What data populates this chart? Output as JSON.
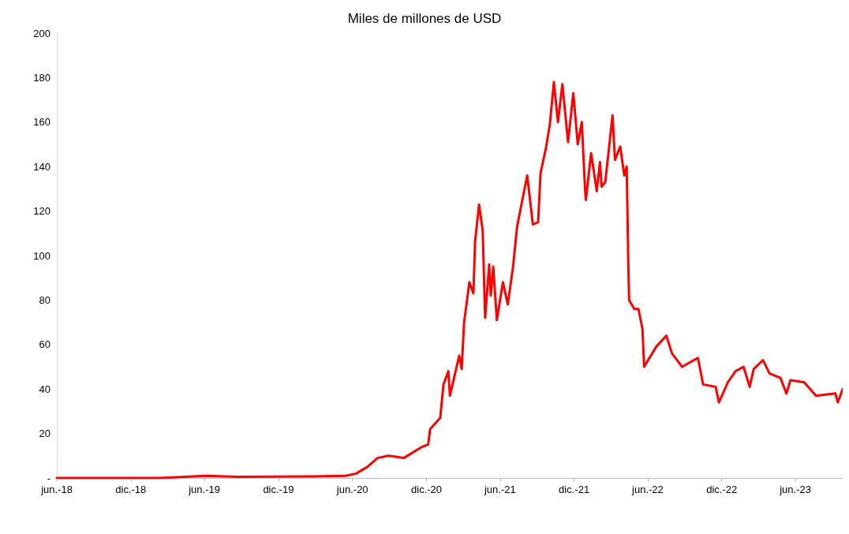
{
  "chart_data": {
    "type": "line",
    "title": "Miles de millones de USD",
    "x": [
      "2018-06-01",
      "2019-02-10",
      "2019-06-05",
      "2019-08-20",
      "2020-02-25",
      "2020-05-15",
      "2020-06-10",
      "2020-07-08",
      "2020-08-02",
      "2020-08-29",
      "2020-10-06",
      "2020-11-20",
      "2020-12-05",
      "2020-12-10",
      "2021-01-04",
      "2021-01-12",
      "2021-01-24",
      "2021-01-28",
      "2021-02-20",
      "2021-02-26",
      "2021-03-04",
      "2021-03-17",
      "2021-03-27",
      "2021-03-31",
      "2021-04-10",
      "2021-04-19",
      "2021-04-25",
      "2021-05-05",
      "2021-05-09",
      "2021-05-15",
      "2021-05-24",
      "2021-06-08",
      "2021-06-20",
      "2021-07-03",
      "2021-07-13",
      "2021-08-07",
      "2021-08-21",
      "2021-09-03",
      "2021-09-09",
      "2021-09-23",
      "2021-10-02",
      "2021-10-12",
      "2021-10-22",
      "2021-11-02",
      "2021-11-16",
      "2021-11-29",
      "2021-12-10",
      "2021-12-20",
      "2021-12-28",
      "2021-12-30",
      "2022-01-12",
      "2022-01-26",
      "2022-02-03",
      "2022-02-07",
      "2022-02-16",
      "2022-03-06",
      "2022-03-12",
      "2022-03-25",
      "2022-04-04",
      "2022-04-10",
      "2022-04-14",
      "2022-04-16",
      "2022-04-29",
      "2022-05-09",
      "2022-05-19",
      "2022-05-23",
      "2022-06-22",
      "2022-07-17",
      "2022-07-31",
      "2022-08-25",
      "2022-10-03",
      "2022-10-16",
      "2022-11-16",
      "2022-11-24",
      "2022-12-16",
      "2023-01-04",
      "2023-01-24",
      "2023-02-08",
      "2023-02-18",
      "2023-03-13",
      "2023-03-29",
      "2023-04-25",
      "2023-05-10",
      "2023-05-20",
      "2023-06-23",
      "2023-07-22",
      "2023-09-08",
      "2023-09-14",
      "2023-09-26"
    ],
    "series": [
      {
        "color": "#ff0000",
        "values": [
          0,
          0,
          1,
          0.5,
          0.7,
          1,
          2,
          5,
          9,
          10,
          9,
          14,
          15,
          22,
          27,
          42,
          48,
          37,
          55,
          49,
          70,
          88,
          83,
          106,
          123,
          111,
          72,
          96,
          82,
          95,
          71,
          88,
          78,
          95,
          113,
          136,
          114,
          115,
          137,
          149,
          159,
          178,
          160,
          177,
          151,
          173,
          150,
          160,
          130,
          125,
          146,
          129,
          142,
          131,
          133,
          163,
          143,
          149,
          136,
          140,
          96,
          80,
          76,
          76,
          67,
          50,
          59,
          64,
          56,
          50,
          54,
          42,
          41,
          34,
          43,
          48,
          50,
          41,
          49,
          53,
          47,
          45,
          38,
          44,
          43,
          37,
          38,
          34,
          40
        ]
      }
    ],
    "xlim": [
      "2018-06-01",
      "2023-09-26"
    ],
    "xticks": [
      {
        "value": "2018-06-01",
        "label": "jun.-18"
      },
      {
        "value": "2018-12-01",
        "label": "dic.-18"
      },
      {
        "value": "2019-06-01",
        "label": "jun.-19"
      },
      {
        "value": "2019-12-01",
        "label": "dic.-19"
      },
      {
        "value": "2020-06-01",
        "label": "jun.-20"
      },
      {
        "value": "2020-12-01",
        "label": "dic.-20"
      },
      {
        "value": "2021-06-01",
        "label": "jun.-21"
      },
      {
        "value": "2021-12-01",
        "label": "dic.-21"
      },
      {
        "value": "2022-06-01",
        "label": "jun.-22"
      },
      {
        "value": "2022-12-01",
        "label": "dic.-22"
      },
      {
        "value": "2023-06-01",
        "label": "jun.-23"
      }
    ],
    "ylim": [
      0,
      200
    ],
    "yticks": [
      {
        "value": 0,
        "label": "-"
      },
      20,
      40,
      60,
      80,
      100,
      120,
      140,
      160,
      180,
      200
    ],
    "grid": false,
    "marker": "none",
    "line_style": "solid"
  }
}
